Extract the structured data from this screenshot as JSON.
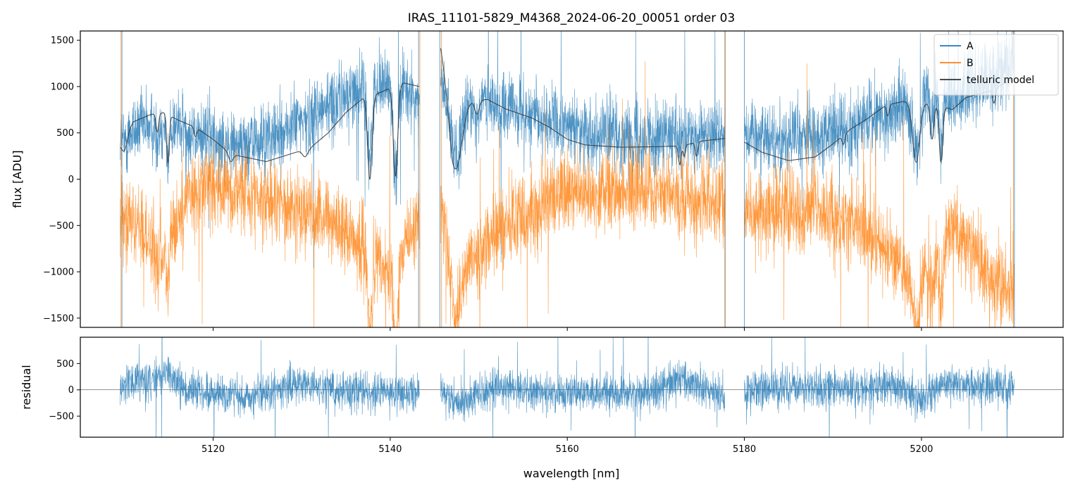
{
  "chart_data": [
    {
      "type": "line",
      "panel": "main",
      "title": "IRAS_11101-5829_M4368_2024-06-20_00051  order 03",
      "xlabel": "",
      "ylabel": "flux [ADU]",
      "xlim": [
        5105,
        5216
      ],
      "ylim": [
        -1600,
        1600
      ],
      "xticks": [
        5120,
        5140,
        5160,
        5180,
        5200
      ],
      "yticks": [
        -1500,
        -1000,
        -500,
        0,
        500,
        1000,
        1500
      ],
      "ytick_labels": [
        "−1500",
        "−1000",
        "−500",
        "0",
        "500",
        "1000",
        "1500"
      ],
      "grid": false,
      "legend_position": "top-right",
      "segments": [
        [
          5109.5,
          5143.3
        ],
        [
          5145.7,
          5177.8
        ],
        [
          5180.0,
          5210.5
        ]
      ],
      "series": [
        {
          "name": "A",
          "color": "#1f77b4",
          "noise": 190,
          "baseline": [
            [
              5109.5,
              500
            ],
            [
              5112,
              560
            ],
            [
              5115,
              600
            ],
            [
              5118,
              500
            ],
            [
              5121,
              430
            ],
            [
              5124,
              380
            ],
            [
              5127,
              450
            ],
            [
              5130,
              650
            ],
            [
              5133,
              800
            ],
            [
              5136,
              950
            ],
            [
              5139,
              1050
            ],
            [
              5141.5,
              950
            ],
            [
              5143.3,
              850
            ],
            [
              5145.7,
              1050
            ],
            [
              5148,
              850
            ],
            [
              5151,
              820
            ],
            [
              5155,
              700
            ],
            [
              5160,
              560
            ],
            [
              5165,
              470
            ],
            [
              5170,
              440
            ],
            [
              5175,
              480
            ],
            [
              5177.8,
              500
            ],
            [
              5180,
              500
            ],
            [
              5184,
              440
            ],
            [
              5188,
              470
            ],
            [
              5192,
              560
            ],
            [
              5196,
              720
            ],
            [
              5200,
              880
            ],
            [
              5204,
              900
            ],
            [
              5208,
              1100
            ],
            [
              5210.5,
              1250
            ]
          ]
        },
        {
          "name": "B",
          "color": "#ff7f0e",
          "noise": 220,
          "baseline": [
            [
              5109.5,
              -250
            ],
            [
              5112,
              -600
            ],
            [
              5114.5,
              -900
            ],
            [
              5117,
              -150
            ],
            [
              5120,
              -50
            ],
            [
              5124,
              -130
            ],
            [
              5128,
              -270
            ],
            [
              5131,
              -330
            ],
            [
              5134,
              -500
            ],
            [
              5137,
              -700
            ],
            [
              5139,
              -1000
            ],
            [
              5141.5,
              -800
            ],
            [
              5143.3,
              -400
            ],
            [
              5145.7,
              -200
            ],
            [
              5147.5,
              -900
            ],
            [
              5150,
              -750
            ],
            [
              5154,
              -450
            ],
            [
              5160,
              -150
            ],
            [
              5165,
              -100
            ],
            [
              5170,
              -120
            ],
            [
              5175,
              -200
            ],
            [
              5177.8,
              -250
            ],
            [
              5180,
              -400
            ],
            [
              5184,
              -300
            ],
            [
              5188,
              -350
            ],
            [
              5192,
              -450
            ],
            [
              5196,
              -750
            ],
            [
              5199,
              -1050
            ],
            [
              5201.5,
              -900
            ],
            [
              5204,
              -450
            ],
            [
              5207,
              -1050
            ],
            [
              5210.5,
              -1200
            ]
          ]
        },
        {
          "name": "telluric model",
          "color": "#333333",
          "continuum": [
            [
              5109.5,
              380
            ],
            [
              5111,
              620
            ],
            [
              5113,
              700
            ],
            [
              5114.5,
              720
            ],
            [
              5116,
              640
            ],
            [
              5118,
              560
            ],
            [
              5120,
              430
            ],
            [
              5122,
              270
            ],
            [
              5124,
              230
            ],
            [
              5126,
              190
            ],
            [
              5128,
              250
            ],
            [
              5131,
              340
            ],
            [
              5133,
              500
            ],
            [
              5135,
              720
            ],
            [
              5137,
              880
            ],
            [
              5139,
              940
            ],
            [
              5140.5,
              1010
            ],
            [
              5141.5,
              1040
            ],
            [
              5143.3,
              1000
            ],
            [
              5145.7,
              1450
            ],
            [
              5147,
              800
            ],
            [
              5149,
              850
            ],
            [
              5151,
              860
            ],
            [
              5153,
              760
            ],
            [
              5156,
              660
            ],
            [
              5158,
              560
            ],
            [
              5160,
              430
            ],
            [
              5162,
              370
            ],
            [
              5166,
              345
            ],
            [
              5170,
              350
            ],
            [
              5173,
              360
            ],
            [
              5175,
              410
            ],
            [
              5177.8,
              440
            ],
            [
              5180,
              400
            ],
            [
              5182,
              290
            ],
            [
              5185,
              200
            ],
            [
              5188,
              240
            ],
            [
              5190,
              380
            ],
            [
              5192,
              540
            ],
            [
              5194,
              660
            ],
            [
              5196,
              800
            ],
            [
              5198,
              840
            ],
            [
              5200,
              830
            ],
            [
              5202,
              800
            ],
            [
              5203.5,
              750
            ],
            [
              5205,
              880
            ],
            [
              5208,
              960
            ],
            [
              5210.5,
              1100
            ]
          ],
          "lines": [
            [
              5110.0,
              150,
              0.3
            ],
            [
              5113.7,
              200,
              0.15
            ],
            [
              5114.9,
              520,
              0.15
            ],
            [
              5118.0,
              100,
              0.15
            ],
            [
              5122.0,
              80,
              0.25
            ],
            [
              5130.4,
              80,
              0.3
            ],
            [
              5137.7,
              900,
              0.25
            ],
            [
              5140.6,
              980,
              0.25
            ],
            [
              5147.4,
              700,
              0.7
            ],
            [
              5149.8,
              150,
              0.25
            ],
            [
              5172.7,
              200,
              0.15
            ],
            [
              5173.2,
              120,
              0.12
            ],
            [
              5174.6,
              150,
              0.15
            ],
            [
              5191.2,
              100,
              0.15
            ],
            [
              5196.2,
              120,
              0.15
            ],
            [
              5199.4,
              650,
              0.4
            ],
            [
              5201.2,
              380,
              0.2
            ],
            [
              5202.2,
              600,
              0.2
            ],
            [
              5208.2,
              150,
              0.15
            ]
          ]
        }
      ]
    },
    {
      "type": "line",
      "panel": "residual",
      "title": "",
      "xlabel": "wavelength [nm]",
      "ylabel": "residual",
      "xlim": [
        5105,
        5216
      ],
      "ylim": [
        -900,
        1000
      ],
      "xticks": [
        5120,
        5140,
        5160,
        5180,
        5200
      ],
      "xtick_labels": [
        "5120",
        "5140",
        "5160",
        "5180",
        "5200"
      ],
      "yticks": [
        -500,
        0,
        500
      ],
      "ytick_labels": [
        "−500",
        "0",
        "500"
      ],
      "grid": false,
      "zero_line": 0,
      "segments": [
        [
          5109.5,
          5143.3
        ],
        [
          5145.7,
          5177.8
        ],
        [
          5180.0,
          5210.5
        ]
      ],
      "series": [
        {
          "name": "",
          "color": "#1f77b4",
          "noise": 180,
          "baseline": [
            [
              5109.5,
              100
            ],
            [
              5113,
              150
            ],
            [
              5115,
              300
            ],
            [
              5117,
              0
            ],
            [
              5120,
              -80
            ],
            [
              5124,
              -120
            ],
            [
              5127,
              -40
            ],
            [
              5130,
              150
            ],
            [
              5133,
              -20
            ],
            [
              5136,
              -60
            ],
            [
              5140,
              -40
            ],
            [
              5143.3,
              -100
            ],
            [
              5145.7,
              -60
            ],
            [
              5148,
              -250
            ],
            [
              5152,
              60
            ],
            [
              5155,
              -60
            ],
            [
              5160,
              -80
            ],
            [
              5164,
              0
            ],
            [
              5168,
              -100
            ],
            [
              5172,
              180
            ],
            [
              5174,
              120
            ],
            [
              5177.8,
              -100
            ],
            [
              5180,
              20
            ],
            [
              5186,
              40
            ],
            [
              5190,
              20
            ],
            [
              5193,
              -20
            ],
            [
              5196,
              120
            ],
            [
              5200,
              -200
            ],
            [
              5203,
              150
            ],
            [
              5206,
              80
            ],
            [
              5210.5,
              50
            ]
          ]
        }
      ]
    }
  ]
}
